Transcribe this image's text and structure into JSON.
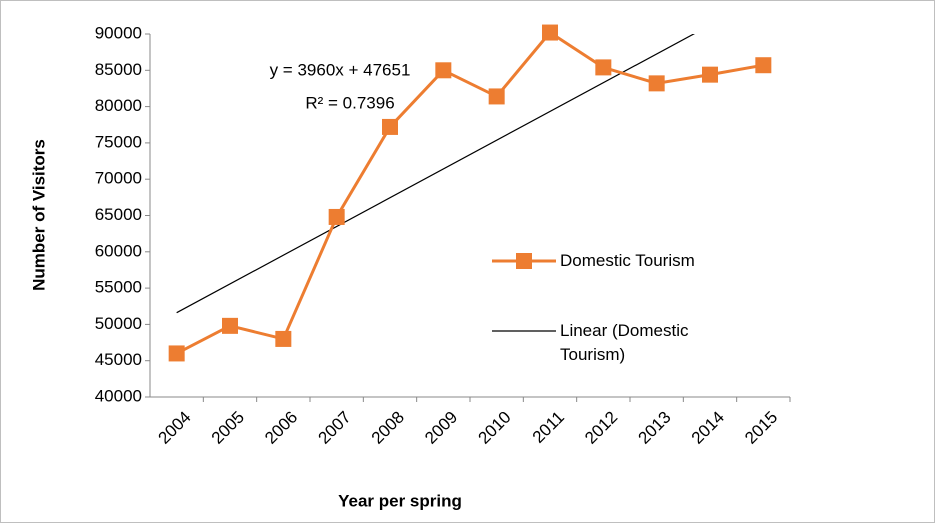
{
  "chart_data": {
    "type": "line",
    "x_label": "Year per spring",
    "y_label": "Number of Visitors",
    "categories": [
      "2004",
      "2005",
      "2006",
      "2007",
      "2008",
      "2009",
      "2010",
      "2011",
      "2012",
      "2013",
      "2014",
      "2015"
    ],
    "series": [
      {
        "name": "Domestic Tourism",
        "color": "#ed7d31",
        "values": [
          46000,
          49800,
          48000,
          64800,
          77200,
          85000,
          81400,
          90200,
          85400,
          83200,
          84400,
          85700
        ]
      }
    ],
    "trendline": {
      "name": "Linear (Domestic Tourism)",
      "slope": 3960,
      "intercept": 47651,
      "color": "#000000",
      "equation": "y = 3960x + 47651",
      "r_squared": "R² = 0.7396"
    },
    "ylim": [
      40000,
      90000
    ],
    "yticks": [
      40000,
      45000,
      50000,
      55000,
      60000,
      65000,
      70000,
      75000,
      80000,
      85000,
      90000
    ],
    "legend": "right"
  }
}
